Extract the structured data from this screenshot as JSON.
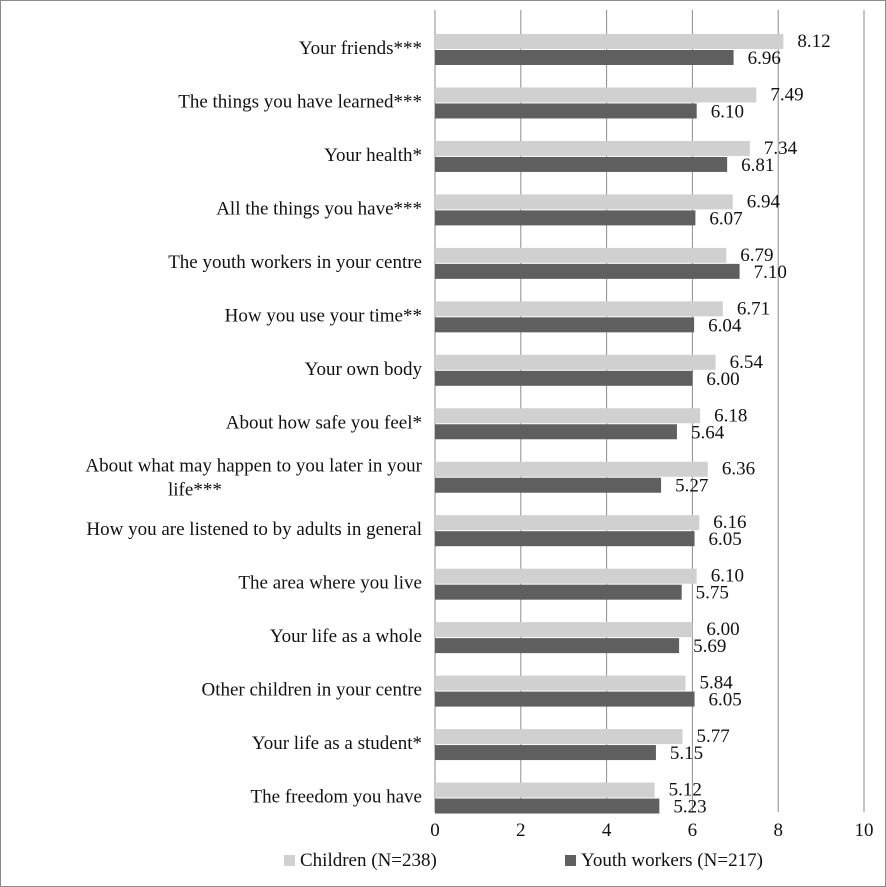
{
  "chart_data": {
    "type": "bar",
    "orientation": "horizontal",
    "categories": [
      [
        "Your friends***"
      ],
      [
        "The things you have learned***"
      ],
      [
        "Your health*"
      ],
      [
        "All the things you have***"
      ],
      [
        "The youth workers in your centre"
      ],
      [
        "How you use your time**"
      ],
      [
        "Your own body"
      ],
      [
        "About how safe you feel*"
      ],
      [
        "About what may happen to you later in your",
        "life***"
      ],
      [
        "How you are listened to by adults in general"
      ],
      [
        "The area where you live"
      ],
      [
        "Your life as a whole"
      ],
      [
        "Other children in your centre"
      ],
      [
        "Your life as a student*"
      ],
      [
        "The freedom you have"
      ]
    ],
    "series": [
      {
        "name": "Children (N=238)",
        "color": "#d0d0d0",
        "values": [
          8.12,
          7.49,
          7.34,
          6.94,
          6.79,
          6.71,
          6.54,
          6.18,
          6.36,
          6.16,
          6.1,
          6.0,
          5.84,
          5.77,
          5.12
        ],
        "labels": [
          "8.12",
          "7.49",
          "7.34",
          "6.94",
          "6.79",
          "6.71",
          "6.54",
          "6.18",
          "6.36",
          "6.16",
          "6.10",
          "6.00",
          "5.84",
          "5.77",
          "5.12"
        ]
      },
      {
        "name": "Youth workers (N=217)",
        "color": "#5f5f5f",
        "values": [
          6.96,
          6.1,
          6.81,
          6.07,
          7.1,
          6.04,
          6.0,
          5.64,
          5.27,
          6.05,
          5.75,
          5.69,
          6.05,
          5.15,
          5.23
        ],
        "labels": [
          "6.96",
          "6.10",
          "6.81",
          "6.07",
          "7.10",
          "6.04",
          "6.00",
          "5.64",
          "5.27",
          "6.05",
          "5.75",
          "5.69",
          "6.05",
          "5.15",
          "5.23"
        ]
      }
    ],
    "xlim": [
      0,
      10
    ],
    "xticks": [
      "0",
      "2",
      "4",
      "6",
      "8",
      "10"
    ],
    "grid": "vertical",
    "legend": "bottom"
  }
}
